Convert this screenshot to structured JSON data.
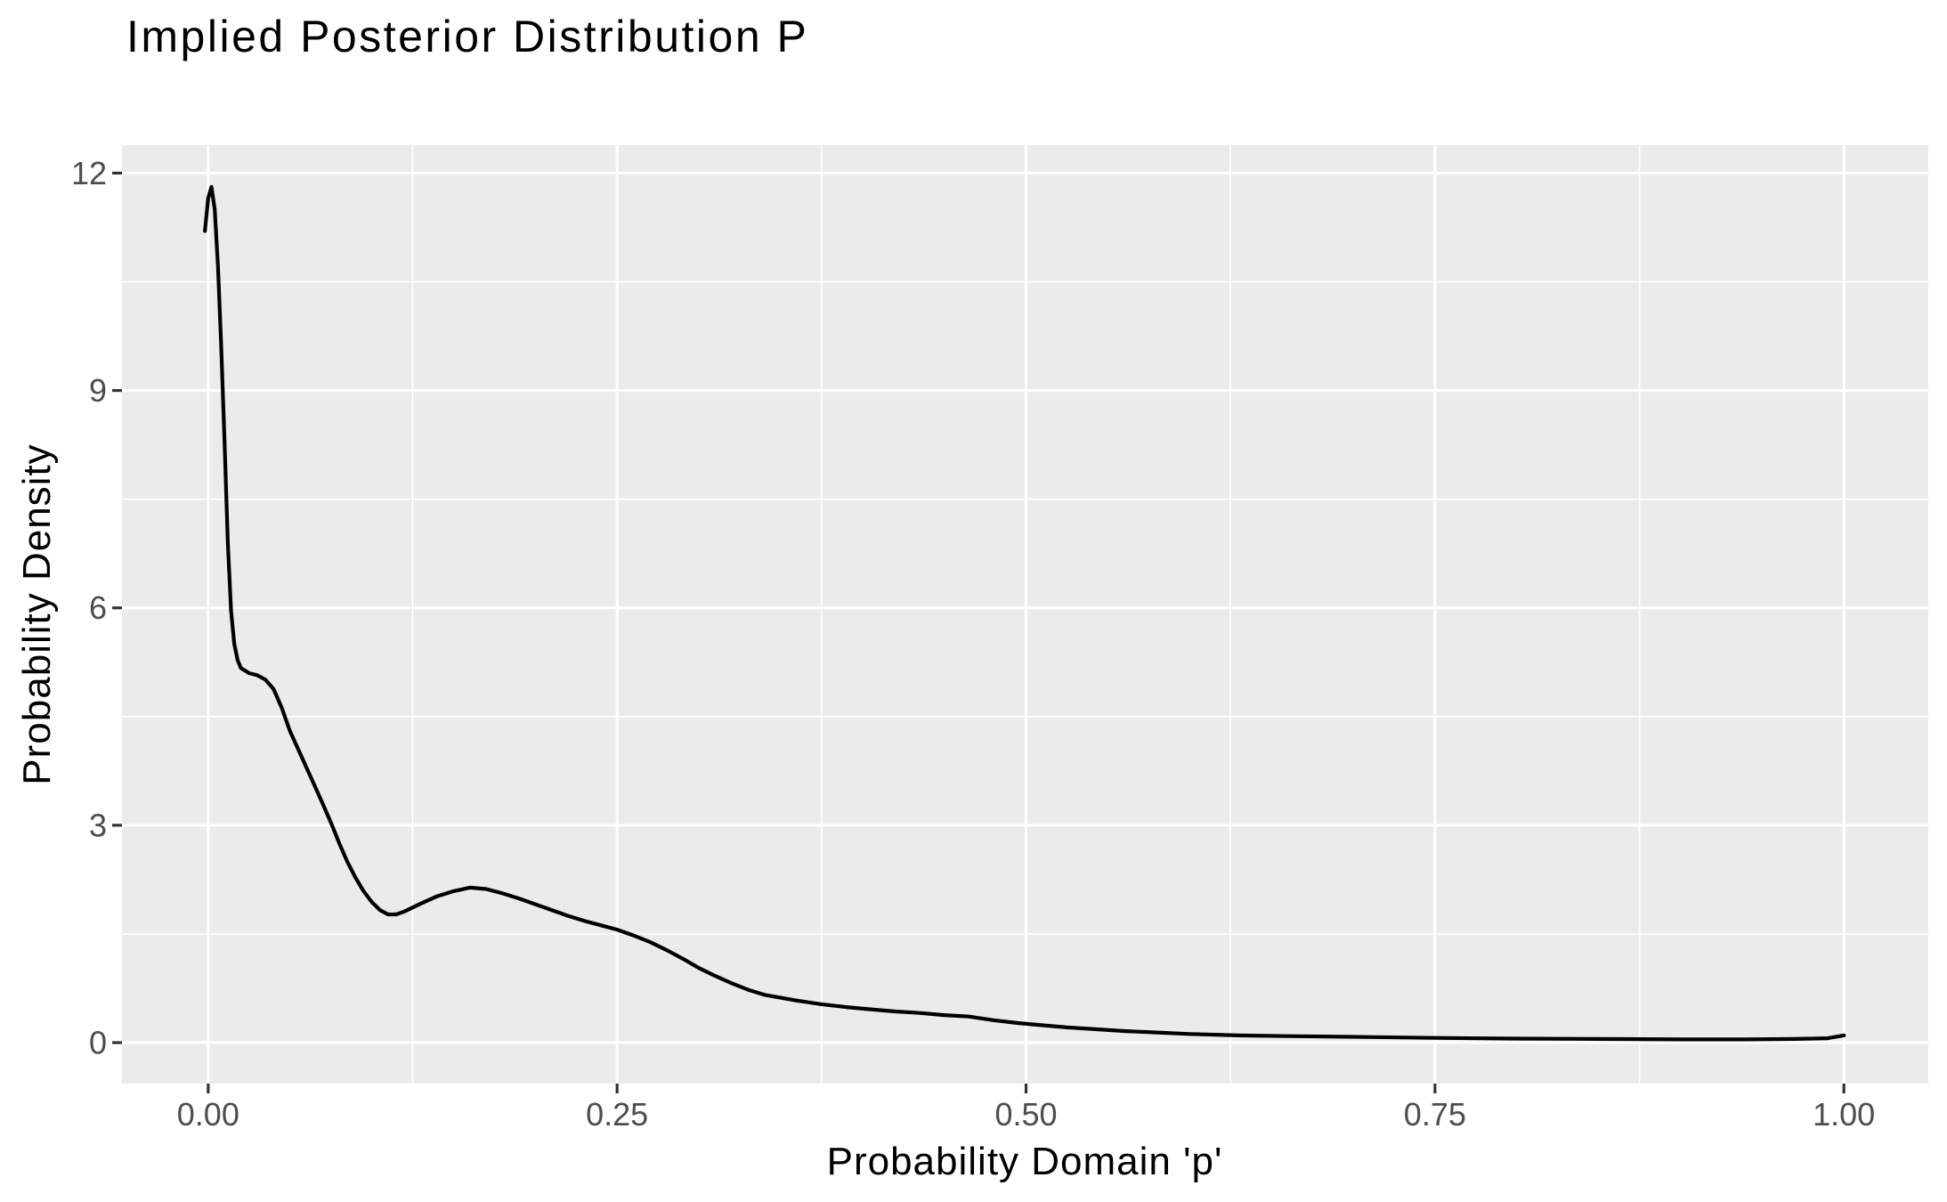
{
  "chart_data": {
    "type": "line",
    "title": "Implied Posterior Distribution P",
    "xlabel": "Probability Domain 'p'",
    "ylabel": "Probability Density",
    "x_ticks": [
      0.0,
      0.25,
      0.5,
      0.75,
      1.0
    ],
    "x_tick_labels": [
      "0.00",
      "0.25",
      "0.50",
      "0.75",
      "1.00"
    ],
    "y_ticks": [
      0,
      3,
      6,
      9,
      12
    ],
    "y_tick_labels": [
      "0",
      "3",
      "6",
      "9",
      "12"
    ],
    "x_minor_gridlines": [
      0.125,
      0.375,
      0.625,
      0.875
    ],
    "y_minor_gridlines": [
      1.5,
      4.5,
      7.5,
      10.5
    ],
    "xlim": [
      -0.0527,
      1.0516
    ],
    "ylim": [
      -0.565,
      12.386
    ],
    "grid": true,
    "legend": false,
    "panel_bg": "#EBEBEB",
    "grid_color": "#FFFFFF",
    "tick_mark_color": "#333333",
    "tick_label_color": "#4D4D4D",
    "line_color": "#000000",
    "series": [
      {
        "name": "posterior-density-curve",
        "x": [
          -0.002,
          0.0,
          0.002,
          0.004,
          0.006,
          0.008,
          0.01,
          0.012,
          0.014,
          0.016,
          0.018,
          0.02,
          0.025,
          0.03,
          0.035,
          0.04,
          0.045,
          0.05,
          0.055,
          0.06,
          0.065,
          0.07,
          0.075,
          0.08,
          0.085,
          0.09,
          0.095,
          0.1,
          0.105,
          0.11,
          0.115,
          0.12,
          0.13,
          0.14,
          0.15,
          0.16,
          0.17,
          0.18,
          0.19,
          0.2,
          0.21,
          0.22,
          0.23,
          0.24,
          0.25,
          0.26,
          0.27,
          0.28,
          0.29,
          0.3,
          0.31,
          0.32,
          0.33,
          0.34,
          0.35,
          0.36,
          0.375,
          0.39,
          0.405,
          0.42,
          0.435,
          0.45,
          0.465,
          0.48,
          0.495,
          0.51,
          0.525,
          0.54,
          0.56,
          0.58,
          0.6,
          0.63,
          0.66,
          0.7,
          0.75,
          0.8,
          0.85,
          0.9,
          0.94,
          0.97,
          0.99,
          1.0
        ],
        "y": [
          11.2,
          11.65,
          11.81,
          11.5,
          10.7,
          9.6,
          8.3,
          6.9,
          5.95,
          5.5,
          5.28,
          5.17,
          5.1,
          5.07,
          5.01,
          4.88,
          4.62,
          4.3,
          4.05,
          3.8,
          3.55,
          3.3,
          3.04,
          2.76,
          2.5,
          2.28,
          2.09,
          1.94,
          1.83,
          1.77,
          1.77,
          1.81,
          1.92,
          2.02,
          2.09,
          2.14,
          2.12,
          2.06,
          1.99,
          1.91,
          1.83,
          1.75,
          1.68,
          1.62,
          1.56,
          1.48,
          1.39,
          1.28,
          1.16,
          1.03,
          0.92,
          0.82,
          0.73,
          0.66,
          0.62,
          0.58,
          0.53,
          0.49,
          0.46,
          0.43,
          0.41,
          0.38,
          0.36,
          0.31,
          0.27,
          0.24,
          0.21,
          0.19,
          0.16,
          0.14,
          0.12,
          0.1,
          0.09,
          0.08,
          0.065,
          0.055,
          0.05,
          0.045,
          0.045,
          0.05,
          0.06,
          0.1
        ]
      }
    ]
  }
}
